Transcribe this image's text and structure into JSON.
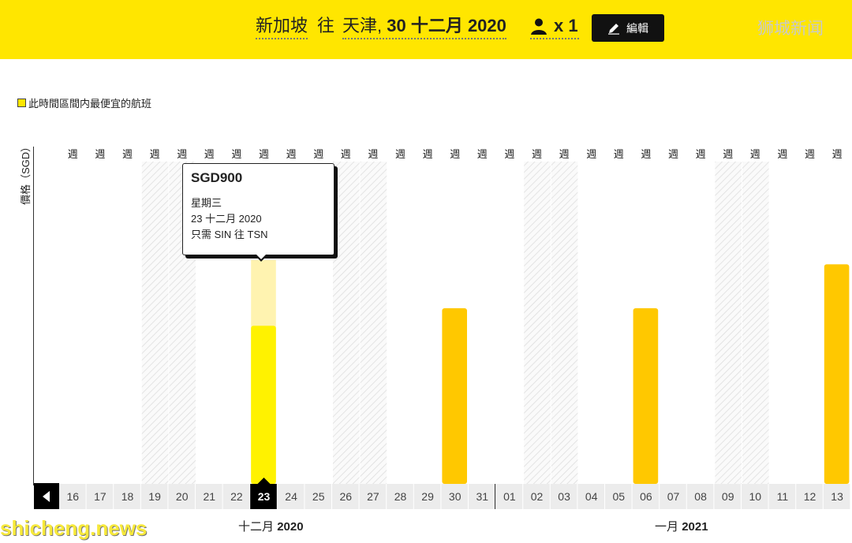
{
  "header": {
    "origin": "新加坡",
    "separator": "往",
    "destination": "天津,",
    "date": "30 十二月 2020",
    "passengers": "x 1",
    "edit_label": "編輯"
  },
  "watermark_top": "狮城新闻",
  "watermark_bottom": "shicheng.news",
  "legend_label": "此時間區間内最便宜的航班",
  "y_axis_label": "價格（SGD）",
  "tooltip": {
    "price": "SGD900",
    "weekday": "星期三",
    "date": "23 十二月 2020",
    "route": "只需 SIN 往 TSN"
  },
  "month_labels": [
    {
      "name": "十二月",
      "year": "2020"
    },
    {
      "name": "一月",
      "year": "2021"
    }
  ],
  "colors": {
    "brand_yellow": "#ffe600",
    "bar_gold": "#ffc800",
    "selected_bar": "#fff200",
    "selected_ghost": "#fff3b0"
  },
  "chart_data": {
    "type": "bar",
    "week_marker": "週",
    "categories": [
      "16",
      "17",
      "18",
      "19",
      "20",
      "21",
      "22",
      "23",
      "24",
      "25",
      "26",
      "27",
      "28",
      "29",
      "30",
      "31",
      "01",
      "02",
      "03",
      "04",
      "05",
      "06",
      "07",
      "08",
      "09",
      "10",
      "11",
      "12",
      "13"
    ],
    "values": [
      null,
      null,
      null,
      null,
      null,
      null,
      null,
      900,
      null,
      null,
      null,
      null,
      null,
      null,
      1000,
      null,
      null,
      null,
      null,
      null,
      null,
      1000,
      null,
      null,
      null,
      null,
      null,
      null,
      1250
    ],
    "selected_category": "23",
    "selected_value": 900,
    "weekend_categories": [
      "19",
      "20",
      "26",
      "27",
      "02",
      "03",
      "09",
      "10"
    ],
    "ylabel": "價格（SGD）",
    "ylim": [
      0,
      1920
    ]
  }
}
